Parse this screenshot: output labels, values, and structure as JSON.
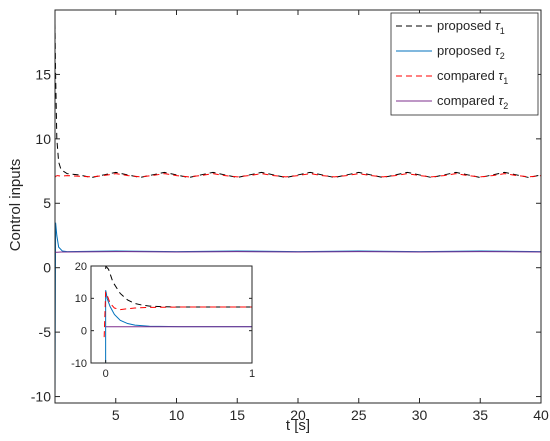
{
  "chart_data": {
    "type": "line",
    "xlabel": "t [s]",
    "ylabel": "Control inputs",
    "xlim": [
      0,
      40
    ],
    "ylim": [
      -10.5,
      20
    ],
    "xticks": [
      5,
      10,
      15,
      20,
      25,
      30,
      35,
      40
    ],
    "yticks": [
      -10,
      -5,
      0,
      5,
      10,
      15
    ],
    "grid": false,
    "legend_position": "top-right",
    "series": [
      {
        "name": "proposed τ1",
        "name_base": "proposed τ",
        "name_sub": "1",
        "color": "#000000",
        "dash": "dashed",
        "x": [
          0,
          0.05,
          0.15,
          0.3,
          0.5,
          1,
          2,
          3,
          4,
          5,
          6,
          7,
          8,
          9,
          10,
          11,
          12,
          13,
          14,
          15,
          16,
          17,
          18,
          19,
          20,
          21,
          22,
          23,
          24,
          25,
          26,
          27,
          28,
          29,
          30,
          31,
          32,
          33,
          34,
          35,
          36,
          37,
          38,
          39,
          40
        ],
        "y": [
          19,
          15,
          10,
          8.2,
          7.6,
          7.3,
          7.2,
          7.0,
          7.2,
          7.4,
          7.2,
          7.0,
          7.2,
          7.4,
          7.2,
          7.0,
          7.2,
          7.4,
          7.2,
          7.0,
          7.2,
          7.4,
          7.2,
          7.0,
          7.2,
          7.4,
          7.2,
          7.0,
          7.2,
          7.4,
          7.2,
          7.0,
          7.2,
          7.4,
          7.2,
          7.0,
          7.2,
          7.4,
          7.2,
          7.0,
          7.2,
          7.4,
          7.2,
          7.0,
          7.2
        ]
      },
      {
        "name": "proposed τ2",
        "name_base": "proposed τ",
        "name_sub": "2",
        "color": "#0072BD",
        "dash": "solid",
        "x": [
          0,
          0.05,
          0.15,
          0.3,
          0.6,
          1,
          5,
          10,
          15,
          20,
          25,
          30,
          35,
          40
        ],
        "y": [
          -10.3,
          3.5,
          2.5,
          1.6,
          1.3,
          1.25,
          1.3,
          1.25,
          1.3,
          1.25,
          1.3,
          1.25,
          1.3,
          1.25
        ]
      },
      {
        "name": "compared τ1",
        "name_base": "compared τ",
        "name_sub": "1",
        "color": "#FF0000",
        "dash": "dashed",
        "x": [
          0,
          0.05,
          0.2,
          0.5,
          1,
          2,
          3,
          4,
          5,
          6,
          7,
          8,
          9,
          10,
          11,
          12,
          13,
          14,
          15,
          16,
          17,
          18,
          19,
          20,
          21,
          22,
          23,
          24,
          25,
          26,
          27,
          28,
          29,
          30,
          31,
          32,
          33,
          34,
          35,
          36,
          37,
          38,
          39,
          40
        ],
        "y": [
          7.0,
          7.1,
          7.15,
          7.1,
          7.15,
          7.1,
          7.05,
          7.15,
          7.3,
          7.15,
          7.05,
          7.15,
          7.3,
          7.15,
          7.05,
          7.15,
          7.3,
          7.15,
          7.05,
          7.15,
          7.3,
          7.15,
          7.05,
          7.15,
          7.3,
          7.15,
          7.05,
          7.15,
          7.3,
          7.15,
          7.05,
          7.15,
          7.3,
          7.15,
          7.05,
          7.15,
          7.3,
          7.15,
          7.05,
          7.15,
          7.3,
          7.15,
          7.05,
          7.15
        ]
      },
      {
        "name": "compared τ2",
        "name_base": "compared τ",
        "name_sub": "2",
        "color": "#7E2F8E",
        "dash": "solid",
        "x": [
          0,
          0.2,
          0.5,
          1,
          5,
          10,
          15,
          20,
          25,
          30,
          35,
          40
        ],
        "y": [
          1.2,
          1.2,
          1.22,
          1.22,
          1.25,
          1.22,
          1.25,
          1.22,
          1.25,
          1.22,
          1.25,
          1.22
        ]
      }
    ],
    "inset": {
      "xlim": [
        -0.1,
        1
      ],
      "ylim": [
        -10,
        20
      ],
      "xticks": [
        0,
        1
      ],
      "yticks": [
        -10,
        0,
        10,
        20
      ],
      "series": [
        {
          "color": "#000000",
          "dash": "dashed",
          "x": [
            0,
            0.02,
            0.05,
            0.1,
            0.15,
            0.2,
            0.25,
            0.3,
            0.4,
            0.5,
            0.7,
            1.0
          ],
          "y": [
            20,
            19,
            15,
            11.5,
            9.5,
            8.4,
            7.9,
            7.6,
            7.4,
            7.3,
            7.3,
            7.3
          ]
        },
        {
          "color": "#0072BD",
          "dash": "solid",
          "x": [
            0,
            0.0,
            0.005,
            0.01,
            0.03,
            0.06,
            0.1,
            0.15,
            0.2,
            0.3,
            0.5,
            1.0
          ],
          "y": [
            -10,
            12.5,
            11.5,
            10,
            7.5,
            5.0,
            3.2,
            2.2,
            1.7,
            1.35,
            1.25,
            1.25
          ]
        },
        {
          "color": "#FF0000",
          "dash": "dashed",
          "x": [
            -0.01,
            0.0,
            0.01,
            0.03,
            0.06,
            0.1,
            0.15,
            0.2,
            0.3,
            0.5,
            1.0
          ],
          "y": [
            -2,
            12,
            11,
            8.5,
            7.0,
            6.5,
            6.8,
            7.0,
            7.2,
            7.3,
            7.3
          ]
        },
        {
          "color": "#7E2F8E",
          "dash": "solid",
          "x": [
            0,
            0.02,
            0.05,
            0.1,
            0.2,
            0.5,
            1.0
          ],
          "y": [
            1.2,
            1.2,
            1.2,
            1.2,
            1.2,
            1.2,
            1.2
          ]
        }
      ]
    }
  }
}
